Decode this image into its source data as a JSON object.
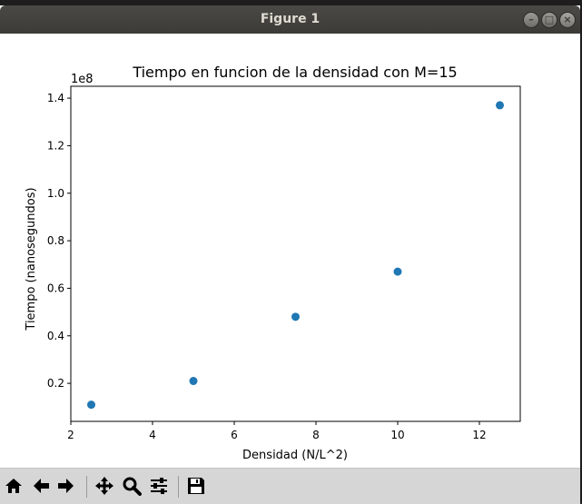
{
  "window": {
    "title": "Figure 1"
  },
  "toolbar": {
    "buttons": [
      {
        "name": "home",
        "icon": "home-icon"
      },
      {
        "name": "back",
        "icon": "arrow-left-icon"
      },
      {
        "name": "forward",
        "icon": "arrow-right-icon"
      },
      {
        "name": "pan",
        "icon": "move-icon"
      },
      {
        "name": "zoom",
        "icon": "magnifier-icon"
      },
      {
        "name": "configure",
        "icon": "sliders-icon"
      },
      {
        "name": "save",
        "icon": "floppy-disk-icon"
      }
    ]
  },
  "chart_data": {
    "type": "scatter",
    "title": "Tiempo en funcion de la densidad con M=15",
    "xlabel": "Densidad (N/L^2)",
    "ylabel": "Tiempo (nanosegundos)",
    "y_offset_label": "1e8",
    "xlim": [
      2,
      13
    ],
    "ylim": [
      0.04,
      1.45
    ],
    "xticks": [
      "2",
      "4",
      "6",
      "8",
      "10",
      "12"
    ],
    "yticks": [
      "0.2",
      "0.4",
      "0.6",
      "0.8",
      "1.0",
      "1.2",
      "1.4"
    ],
    "marker_color": "#1f77b4",
    "points": [
      {
        "x": 2.5,
        "y": 0.11
      },
      {
        "x": 5.0,
        "y": 0.21
      },
      {
        "x": 7.5,
        "y": 0.48
      },
      {
        "x": 10.0,
        "y": 0.67
      },
      {
        "x": 12.5,
        "y": 1.37
      }
    ]
  }
}
